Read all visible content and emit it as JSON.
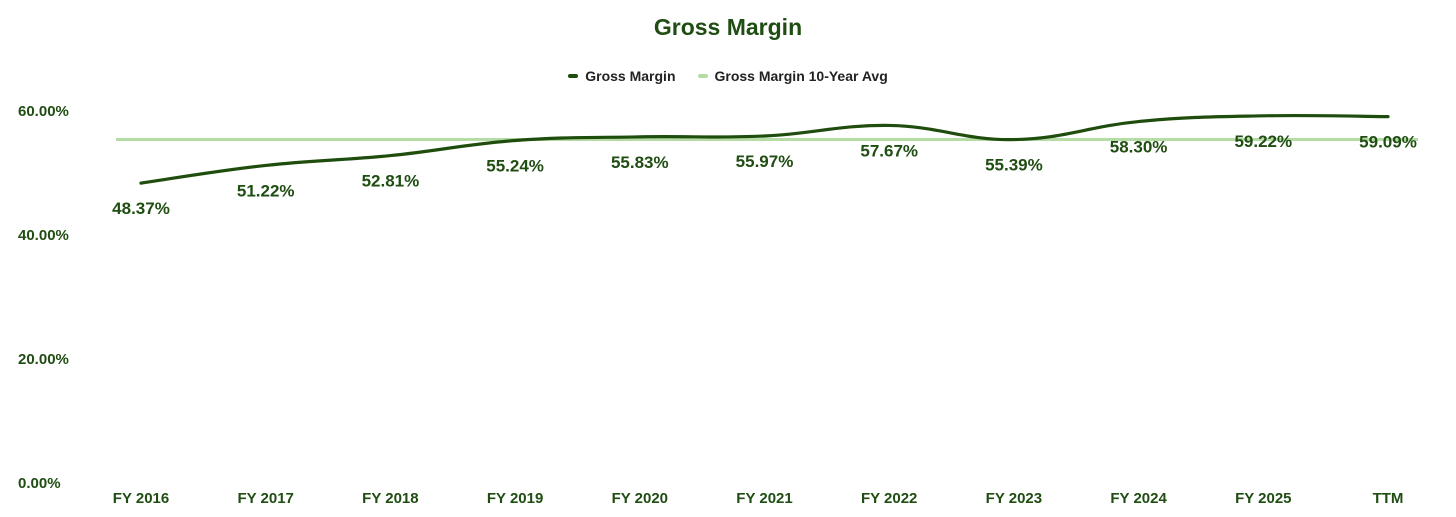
{
  "chart_data": {
    "type": "line",
    "title": "Gross Margin",
    "categories": [
      "FY 2016",
      "FY 2017",
      "FY 2018",
      "FY 2019",
      "FY 2020",
      "FY 2021",
      "FY 2022",
      "FY 2023",
      "FY 2024",
      "FY 2025",
      "TTM"
    ],
    "series": [
      {
        "name": "Gross Margin",
        "color": "#1f4d0d",
        "values": [
          48.37,
          51.22,
          52.81,
          55.24,
          55.83,
          55.97,
          57.67,
          55.39,
          58.3,
          59.22,
          59.09
        ],
        "labels": [
          "48.37%",
          "51.22%",
          "52.81%",
          "55.24%",
          "55.83%",
          "55.97%",
          "57.67%",
          "55.39%",
          "58.30%",
          "59.22%",
          "59.09%"
        ]
      },
      {
        "name": "Gross Margin 10-Year Avg",
        "color": "#b5dca5",
        "values": [
          55.4,
          55.4,
          55.4,
          55.4,
          55.4,
          55.4,
          55.4,
          55.4,
          55.4,
          55.4,
          55.4
        ]
      }
    ],
    "ylim": [
      0,
      60
    ],
    "yticks": [
      0,
      20,
      40,
      60
    ],
    "ytick_labels": [
      "0.00%",
      "20.00%",
      "40.00%",
      "60.00%"
    ],
    "grid": false,
    "legend_position": "top-center"
  }
}
